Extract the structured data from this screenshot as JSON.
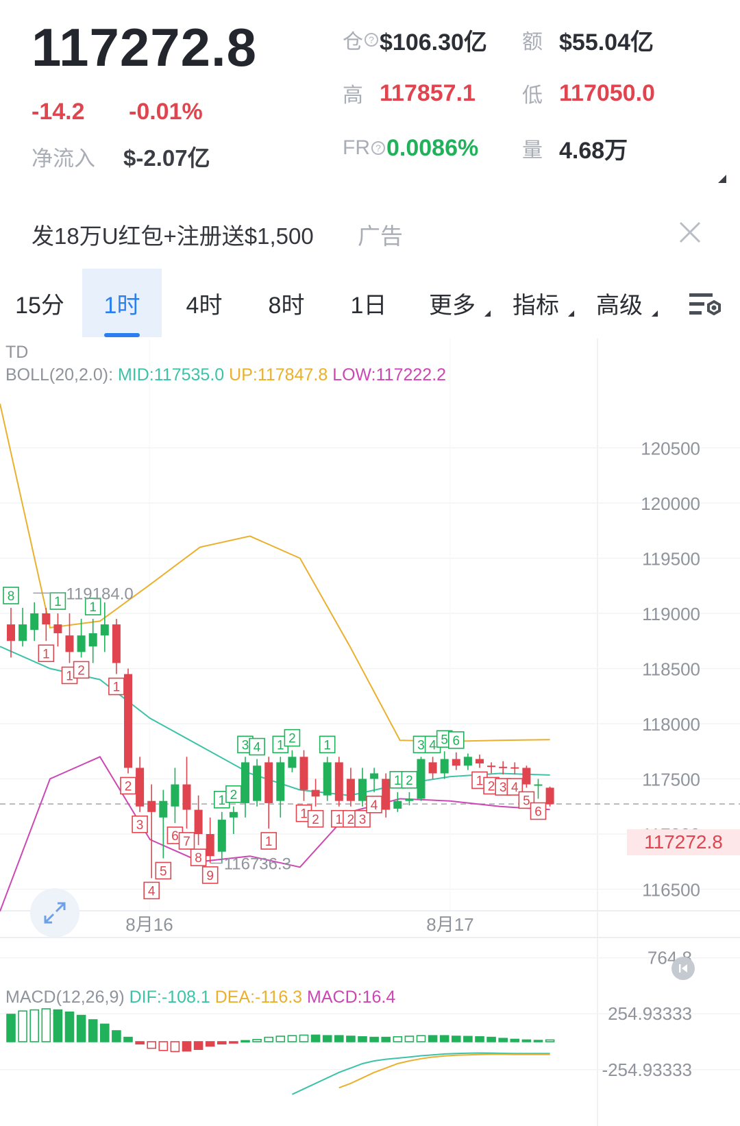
{
  "header": {
    "price": "117272.8",
    "change_abs": "-14.2",
    "change_pct": "-0.01%",
    "net_inflow_label": "净流入",
    "net_inflow_value": "$-2.07亿",
    "open_interest": {
      "label": "仓",
      "value": "$106.30亿"
    },
    "turnover": {
      "label": "额",
      "value": "$55.04亿"
    },
    "high": {
      "label": "高",
      "value": "117857.1"
    },
    "low": {
      "label": "低",
      "value": "117050.0"
    },
    "funding_rate": {
      "label": "FR",
      "value": "0.0086%"
    },
    "volume": {
      "label": "量",
      "value": "4.68万"
    },
    "help_glyph": "?"
  },
  "ad": {
    "text": "发18万U红包+注册送$1,500",
    "tag": "广告"
  },
  "tabs": [
    {
      "label": "15分",
      "active": false
    },
    {
      "label": "1时",
      "active": true
    },
    {
      "label": "4时",
      "active": false
    },
    {
      "label": "8时",
      "active": false
    },
    {
      "label": "1日",
      "active": false
    },
    {
      "label": "更多",
      "active": false,
      "dropdown": true
    },
    {
      "label": "指标",
      "active": false,
      "dropdown": true
    },
    {
      "label": "高级",
      "active": false,
      "dropdown": true
    }
  ],
  "main_chart": {
    "indicator_name": "TD",
    "boll": {
      "label": "BOLL(20,2.0):",
      "mid": "MID:117535.0",
      "up": "UP:117847.8",
      "low": "LOW:117222.2"
    },
    "y_axis": [
      "120500",
      "120000",
      "119500",
      "119000",
      "118500",
      "118000",
      "117500",
      "117000",
      "116500"
    ],
    "x_axis": [
      "8月16",
      "8月17"
    ],
    "current_price_label": "117272.8",
    "high_marker": "119184.0",
    "low_marker": "116736.3"
  },
  "macd_chart": {
    "label": "MACD(12,26,9)",
    "dif": "DIF:-108.1",
    "dea": "DEA:-116.3",
    "macd": "MACD:16.4",
    "y_axis": [
      "764.8",
      "254.93333",
      "-254.93333"
    ]
  },
  "chart_data": {
    "type": "candlestick",
    "y_range": [
      116300,
      120900
    ],
    "candles": [
      {
        "o": 118900,
        "c": 118750,
        "h": 119050,
        "l": 118600
      },
      {
        "o": 118750,
        "c": 118900,
        "h": 119050,
        "l": 118700
      },
      {
        "o": 118850,
        "c": 119000,
        "h": 119100,
        "l": 118750
      },
      {
        "o": 119000,
        "c": 118900,
        "h": 119050,
        "l": 118750
      },
      {
        "o": 118900,
        "c": 118820,
        "h": 119000,
        "l": 118700
      },
      {
        "o": 118800,
        "c": 118650,
        "h": 119000,
        "l": 118550
      },
      {
        "o": 118650,
        "c": 118800,
        "h": 118950,
        "l": 118600
      },
      {
        "o": 118700,
        "c": 118820,
        "h": 118950,
        "l": 118550
      },
      {
        "o": 118800,
        "c": 118900,
        "h": 119100,
        "l": 118650
      },
      {
        "o": 118900,
        "c": 118550,
        "h": 118950,
        "l": 118450
      },
      {
        "o": 118450,
        "c": 117600,
        "h": 118500,
        "l": 117550
      },
      {
        "o": 117600,
        "c": 117250,
        "h": 117700,
        "l": 117200
      },
      {
        "o": 117300,
        "c": 117200,
        "h": 117450,
        "l": 116600
      },
      {
        "o": 117150,
        "c": 117300,
        "h": 117400,
        "l": 116780
      },
      {
        "o": 117250,
        "c": 117450,
        "h": 117600,
        "l": 117100
      },
      {
        "o": 117450,
        "c": 117220,
        "h": 117700,
        "l": 117050
      },
      {
        "o": 117220,
        "c": 117000,
        "h": 117350,
        "l": 116900
      },
      {
        "o": 117000,
        "c": 116800,
        "h": 117150,
        "l": 116740
      },
      {
        "o": 116840,
        "c": 117130,
        "h": 117200,
        "l": 116740
      },
      {
        "o": 117150,
        "c": 117200,
        "h": 117250,
        "l": 117000
      },
      {
        "o": 117280,
        "c": 117650,
        "h": 117700,
        "l": 117150
      },
      {
        "o": 117300,
        "c": 117620,
        "h": 117680,
        "l": 117250
      },
      {
        "o": 117650,
        "c": 117280,
        "h": 117700,
        "l": 117050
      },
      {
        "o": 117300,
        "c": 117650,
        "h": 117700,
        "l": 117150
      },
      {
        "o": 117600,
        "c": 117700,
        "h": 117760,
        "l": 117560
      },
      {
        "o": 117700,
        "c": 117400,
        "h": 117760,
        "l": 117300
      },
      {
        "o": 117400,
        "c": 117340,
        "h": 117500,
        "l": 117250
      },
      {
        "o": 117350,
        "c": 117650,
        "h": 117700,
        "l": 117300
      },
      {
        "o": 117650,
        "c": 117300,
        "h": 117700,
        "l": 117250
      },
      {
        "o": 117500,
        "c": 117300,
        "h": 117600,
        "l": 117250
      },
      {
        "o": 117300,
        "c": 117500,
        "h": 117600,
        "l": 117250
      },
      {
        "o": 117500,
        "c": 117550,
        "h": 117600,
        "l": 117380
      },
      {
        "o": 117500,
        "c": 117220,
        "h": 117550,
        "l": 117150
      },
      {
        "o": 117230,
        "c": 117300,
        "h": 117380,
        "l": 117200
      },
      {
        "o": 117300,
        "c": 117320,
        "h": 117380,
        "l": 117260
      },
      {
        "o": 117320,
        "c": 117680,
        "h": 117700,
        "l": 117300
      },
      {
        "o": 117650,
        "c": 117550,
        "h": 117700,
        "l": 117500
      },
      {
        "o": 117550,
        "c": 117680,
        "h": 117750,
        "l": 117500
      },
      {
        "o": 117680,
        "c": 117620,
        "h": 117740,
        "l": 117580
      },
      {
        "o": 117620,
        "c": 117700,
        "h": 117730,
        "l": 117580
      },
      {
        "o": 117680,
        "c": 117640,
        "h": 117720,
        "l": 117600
      },
      {
        "o": 117620,
        "c": 117610,
        "h": 117650,
        "l": 117550
      },
      {
        "o": 117610,
        "c": 117605,
        "h": 117660,
        "l": 117540
      },
      {
        "o": 117605,
        "c": 117600,
        "h": 117650,
        "l": 117540
      },
      {
        "o": 117600,
        "c": 117450,
        "h": 117620,
        "l": 117420
      },
      {
        "o": 117440,
        "c": 117450,
        "h": 117500,
        "l": 117320
      },
      {
        "o": 117420,
        "c": 117270,
        "h": 117430,
        "l": 117250
      }
    ],
    "boll_up": [
      120900,
      118870,
      118930,
      119260,
      119600,
      119700,
      119500,
      118700,
      117850,
      117840,
      117850,
      117855
    ],
    "boll_mid": [
      118700,
      118500,
      118400,
      118050,
      117800,
      117550,
      117400,
      117350,
      117450,
      117520,
      117550,
      117535
    ],
    "boll_low": [
      116300,
      117500,
      117700,
      116950,
      116750,
      116800,
      116700,
      117200,
      117320,
      117300,
      117250,
      117222
    ],
    "td_marks": [
      {
        "i": 0,
        "n": "8",
        "pos": "top",
        "color": "green"
      },
      {
        "i": 3,
        "n": "1",
        "pos": "bottom",
        "color": "red"
      },
      {
        "i": 4,
        "n": "1",
        "pos": "top",
        "color": "green"
      },
      {
        "i": 5,
        "n": "1",
        "pos": "bottom",
        "color": "red"
      },
      {
        "i": 6,
        "n": "2",
        "pos": "bottom",
        "color": "red"
      },
      {
        "i": 7,
        "n": "1",
        "pos": "top",
        "color": "green"
      },
      {
        "i": 9,
        "n": "1",
        "pos": "bottom",
        "color": "red"
      },
      {
        "i": 10,
        "n": "2",
        "pos": "bottom",
        "color": "red"
      },
      {
        "i": 11,
        "n": "3",
        "pos": "bottom",
        "color": "red"
      },
      {
        "i": 12,
        "n": "4",
        "pos": "bottom",
        "color": "red"
      },
      {
        "i": 13,
        "n": "5",
        "pos": "bottom",
        "color": "red"
      },
      {
        "i": 14,
        "n": "6",
        "pos": "bottom",
        "color": "red"
      },
      {
        "i": 15,
        "n": "7",
        "pos": "bottom",
        "color": "red"
      },
      {
        "i": 16,
        "n": "8",
        "pos": "bottom",
        "color": "red"
      },
      {
        "i": 17,
        "n": "9",
        "pos": "bottom",
        "color": "red"
      },
      {
        "i": 18,
        "n": "1",
        "pos": "top",
        "color": "green"
      },
      {
        "i": 19,
        "n": "2",
        "pos": "top",
        "color": "green"
      },
      {
        "i": 20,
        "n": "3",
        "pos": "top",
        "color": "green"
      },
      {
        "i": 21,
        "n": "4",
        "pos": "top",
        "color": "green"
      },
      {
        "i": 22,
        "n": "1",
        "pos": "bottom",
        "color": "red"
      },
      {
        "i": 23,
        "n": "1",
        "pos": "top",
        "color": "green"
      },
      {
        "i": 24,
        "n": "2",
        "pos": "top",
        "color": "green"
      },
      {
        "i": 25,
        "n": "1",
        "pos": "bottom",
        "color": "red"
      },
      {
        "i": 26,
        "n": "2",
        "pos": "bottom",
        "color": "red"
      },
      {
        "i": 27,
        "n": "1",
        "pos": "top",
        "color": "green"
      },
      {
        "i": 28,
        "n": "1",
        "pos": "bottom",
        "color": "red"
      },
      {
        "i": 29,
        "n": "2",
        "pos": "bottom",
        "color": "red"
      },
      {
        "i": 30,
        "n": "3",
        "pos": "bottom",
        "color": "red"
      },
      {
        "i": 31,
        "n": "4",
        "pos": "bottom",
        "color": "red"
      },
      {
        "i": 33,
        "n": "1",
        "pos": "top",
        "color": "green"
      },
      {
        "i": 34,
        "n": "2",
        "pos": "top",
        "color": "green"
      },
      {
        "i": 35,
        "n": "3",
        "pos": "top",
        "color": "green"
      },
      {
        "i": 36,
        "n": "4",
        "pos": "top",
        "color": "green"
      },
      {
        "i": 37,
        "n": "5",
        "pos": "top",
        "color": "green"
      },
      {
        "i": 38,
        "n": "6",
        "pos": "top",
        "color": "green"
      },
      {
        "i": 40,
        "n": "1",
        "pos": "bottom",
        "color": "red"
      },
      {
        "i": 41,
        "n": "2",
        "pos": "bottom",
        "color": "red"
      },
      {
        "i": 42,
        "n": "3",
        "pos": "bottom",
        "color": "red"
      },
      {
        "i": 43,
        "n": "4",
        "pos": "bottom",
        "color": "red"
      },
      {
        "i": 44,
        "n": "5",
        "pos": "bottom",
        "color": "red"
      },
      {
        "i": 45,
        "n": "6",
        "pos": "bottom",
        "color": "red"
      }
    ],
    "macd_hist": [
      250,
      280,
      290,
      300,
      290,
      270,
      240,
      200,
      160,
      100,
      40,
      -20,
      -60,
      -80,
      -90,
      -85,
      -70,
      -40,
      -20,
      -10,
      10,
      20,
      40,
      50,
      55,
      60,
      60,
      55,
      55,
      50,
      45,
      40,
      40,
      45,
      50,
      55,
      55,
      55,
      50,
      48,
      45,
      40,
      30,
      22,
      16,
      12,
      16
    ],
    "macd_dif": [
      null,
      null,
      null,
      null,
      null,
      null,
      null,
      null,
      null,
      null,
      null,
      null,
      null,
      null,
      null,
      null,
      null,
      null,
      null,
      null,
      null,
      null,
      null,
      null,
      -480,
      -430,
      -380,
      -330,
      -280,
      -240,
      -200,
      -175,
      -160,
      -150,
      -140,
      -128,
      -120,
      -112,
      -108,
      -105,
      -103,
      -104,
      -106,
      -108,
      -108,
      -108,
      -108
    ],
    "macd_dea": [
      null,
      null,
      null,
      null,
      null,
      null,
      null,
      null,
      null,
      null,
      null,
      null,
      null,
      null,
      null,
      null,
      null,
      null,
      null,
      null,
      null,
      null,
      null,
      null,
      null,
      null,
      null,
      null,
      -420,
      -380,
      -330,
      -280,
      -240,
      -200,
      -175,
      -155,
      -140,
      -130,
      -124,
      -120,
      -117,
      -115,
      -115,
      -116,
      -116,
      -116,
      -116
    ]
  },
  "colors": {
    "up": "#20b15a",
    "down": "#e0454f",
    "boll_mid": "#3cc2a8",
    "boll_up": "#eab02c",
    "boll_low": "#cc47b4",
    "accent": "#2a7ef0"
  }
}
